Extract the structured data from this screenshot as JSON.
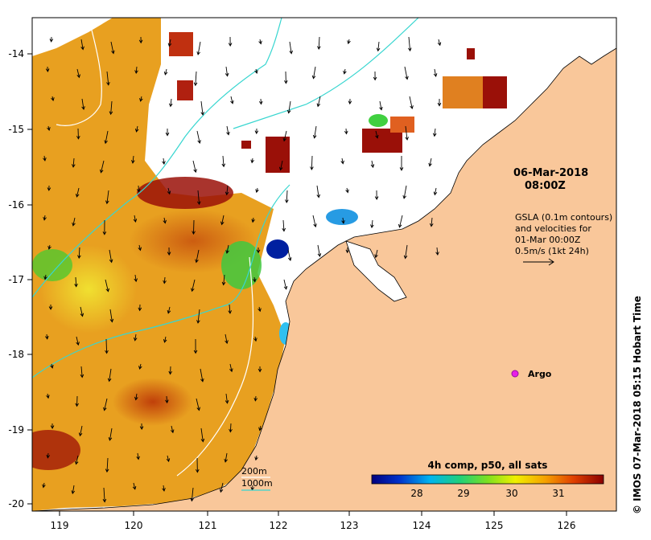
{
  "map": {
    "lon_ticks": [
      "119",
      "120",
      "121",
      "122",
      "123",
      "124",
      "125",
      "126"
    ],
    "lat_ticks": [
      "-14",
      "-15",
      "-16",
      "-17",
      "-18",
      "-19",
      "-20"
    ],
    "timestamp_date": "06-Mar-2018",
    "timestamp_time": "08:00Z",
    "gsla_lines": [
      "GSLA (0.1m contours)",
      "and velocities for",
      "01-Mar 00:00Z",
      "0.5m/s (1kt 24h)"
    ],
    "argo_label": "Argo",
    "argo_color": "#e81ee8",
    "contour_legend_200": "200m",
    "contour_legend_1000": "1000m",
    "colorbar_title": "4h comp, p50, all sats",
    "colorbar_ticks": [
      "28",
      "29",
      "30",
      "31"
    ],
    "side_caption": "© IMOS 07-Mar-2018 05:15 Hobart Time",
    "land_color": "#f9c79a",
    "contour_1000_color": "#38d6d0"
  }
}
